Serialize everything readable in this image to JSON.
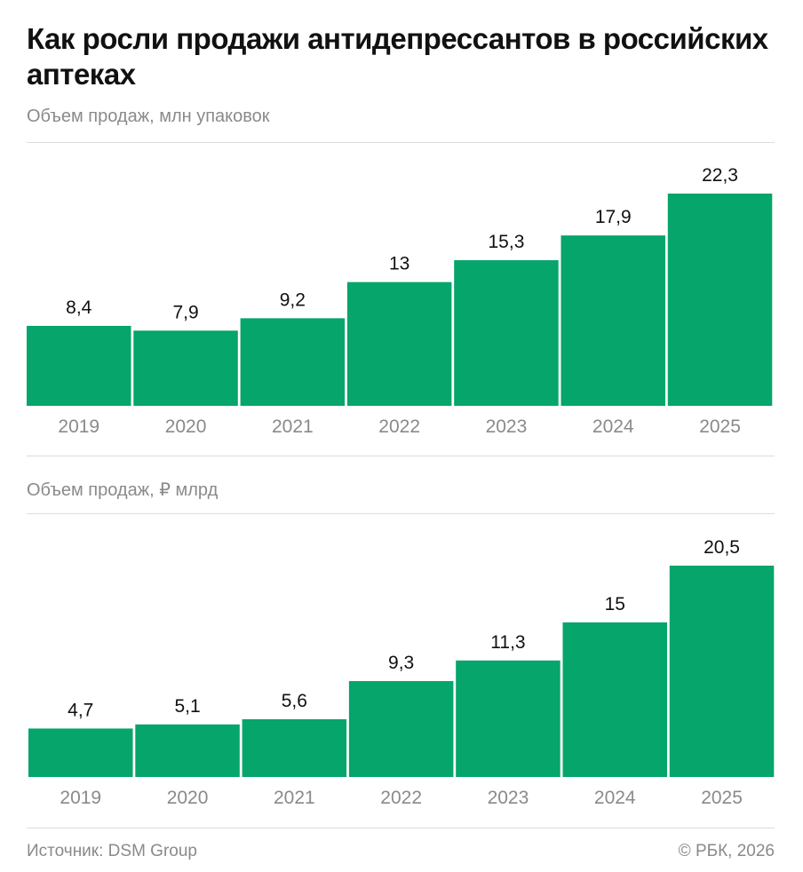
{
  "title": "Как росли продажи антидепрессантов в российских аптеках",
  "source": "Источник: DSM Group",
  "copyright": "© РБК, 2026",
  "colors": {
    "bar": "#05a56b",
    "axis_text": "#8a8a8a",
    "value_text": "#111111"
  },
  "chart_data": [
    {
      "type": "bar",
      "title": "Объем продаж, млн упаковок",
      "categories": [
        "2019",
        "2020",
        "2021",
        "2022",
        "2023",
        "2024",
        "2025"
      ],
      "values": [
        8.4,
        7.9,
        9.2,
        13,
        15.3,
        17.9,
        22.3
      ],
      "labels": [
        "8,4",
        "7,9",
        "9,2",
        "13",
        "15,3",
        "17,9",
        "22,3"
      ],
      "grid": false
    },
    {
      "type": "bar",
      "title": "Объем продаж, ₽ млрд",
      "categories": [
        "2019",
        "2020",
        "2021",
        "2022",
        "2023",
        "2024",
        "2025"
      ],
      "values": [
        4.7,
        5.1,
        5.6,
        9.3,
        11.3,
        15,
        20.5
      ],
      "labels": [
        "4,7",
        "5,1",
        "5,6",
        "9,3",
        "11,3",
        "15",
        "20,5"
      ],
      "grid": false
    }
  ]
}
